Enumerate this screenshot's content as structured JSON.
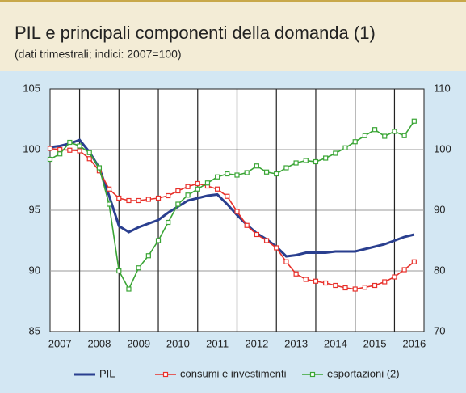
{
  "chart_data": {
    "type": "line",
    "title": "PIL e principali componenti della domanda (1)",
    "subtitle": "(dati trimestrali; indici: 2007=100)",
    "x": [
      2007.25,
      2007.5,
      2007.75,
      2008,
      2008.25,
      2008.5,
      2008.75,
      2009,
      2009.25,
      2009.5,
      2009.75,
      2010,
      2010.25,
      2010.5,
      2010.75,
      2011,
      2011.25,
      2011.5,
      2011.75,
      2012,
      2012.25,
      2012.5,
      2012.75,
      2013,
      2013.25,
      2013.5,
      2013.75,
      2014,
      2014.25,
      2014.5,
      2014.75,
      2015,
      2015.25,
      2015.5,
      2015.75,
      2016,
      2016.25,
      2016.5
    ],
    "xlim": [
      2007.25,
      2016.75
    ],
    "xticks": [
      {
        "value": 2007.5,
        "label": "2007"
      },
      {
        "value": 2008.5,
        "label": "2008"
      },
      {
        "value": 2009.5,
        "label": "2009"
      },
      {
        "value": 2010.5,
        "label": "2010"
      },
      {
        "value": 2011.5,
        "label": "2011"
      },
      {
        "value": 2012.5,
        "label": "2012"
      },
      {
        "value": 2013.5,
        "label": "2013"
      },
      {
        "value": 2014.5,
        "label": "2014"
      },
      {
        "value": 2015.5,
        "label": "2015"
      },
      {
        "value": 2016.5,
        "label": "2016"
      }
    ],
    "ylim": [
      85,
      105
    ],
    "yticks": [
      85,
      90,
      95,
      100,
      105
    ],
    "y2lim": [
      70,
      110
    ],
    "y2ticks": [
      70,
      80,
      90,
      100,
      110
    ],
    "grid": true,
    "legend": "bottom",
    "series": [
      {
        "name": "PIL",
        "color": "#2a3f8f",
        "markers": false,
        "values": [
          100.2,
          100.3,
          100.5,
          100.8,
          99.8,
          98.5,
          96.2,
          93.7,
          93.2,
          93.6,
          93.9,
          94.2,
          94.8,
          95.3,
          95.8,
          96.0,
          96.2,
          96.3,
          95.5,
          94.6,
          93.8,
          93.1,
          92.6,
          92.0,
          91.2,
          91.3,
          91.5,
          91.5,
          91.5,
          91.6,
          91.6,
          91.6,
          91.8,
          92.0,
          92.2,
          92.5,
          92.8,
          93.0
        ]
      },
      {
        "name": "consumi e investimenti",
        "color": "#e8302a",
        "axis": "y2",
        "markers": true,
        "values": [
          100.2,
          100.0,
          99.9,
          99.8,
          98.5,
          96.5,
          93.5,
          92.0,
          91.6,
          91.6,
          91.8,
          92.0,
          92.4,
          93.2,
          93.9,
          94.4,
          94.0,
          93.5,
          92.3,
          89.8,
          87.5,
          86.0,
          85.0,
          83.8,
          81.5,
          79.5,
          78.6,
          78.3,
          78.0,
          77.6,
          77.2,
          77.0,
          77.3,
          77.6,
          78.2,
          79.0,
          80.2,
          81.5
        ]
      },
      {
        "name": "esportazioni (2)",
        "color": "#3aa535",
        "axis": "y2",
        "markers": true,
        "values": [
          98.4,
          99.3,
          101.2,
          100.6,
          99.5,
          97.0,
          91.0,
          80.0,
          77.0,
          80.5,
          82.5,
          85.0,
          88.0,
          91.0,
          92.5,
          93.5,
          94.5,
          95.5,
          96.0,
          95.8,
          96.2,
          97.3,
          96.3,
          96.0,
          97.0,
          97.8,
          98.2,
          98.0,
          98.6,
          99.4,
          100.3,
          101.3,
          102.3,
          103.3,
          102.2,
          103.0,
          102.3,
          104.7
        ]
      }
    ]
  }
}
